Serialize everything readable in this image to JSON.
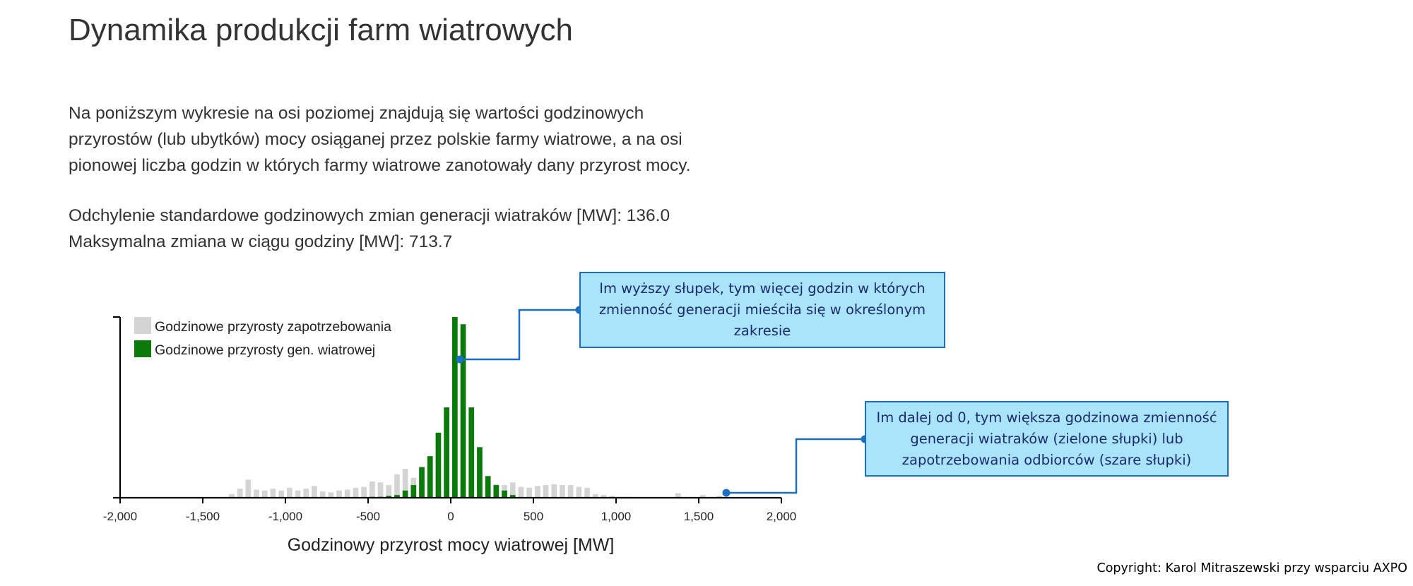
{
  "title": "Dynamika produkcji farm wiatrowych",
  "description": [
    "Na poniższym wykresie na osi poziomej znajdują się wartości godzinowych",
    "przyrostów (lub ubytków) mocy osiąganej przez polskie farmy wiatrowe, a na osi",
    "pionowej liczba godzin w których farmy wiatrowe zanotowały dany przyrost mocy."
  ],
  "stats": {
    "std_line": "Odchylenie standardowe godzinowych zmian generacji wiatraków [MW]: 136.0",
    "max_line": "Maksymalna zmiana w ciągu godziny [MW]: 713.7"
  },
  "callouts": [
    {
      "text": "Im wyższy słupek, tym więcej godzin w których zmienność generacji mieściła się w określonym zakresie"
    },
    {
      "text": "Im dalej od 0, tym większa godzinowa zmienność generacji wiatraków (zielone słupki) lub zapotrzebowania odbiorców (szare słupki)"
    }
  ],
  "copyright": "Copyright: Karol Mitraszewski przy wsparciu AXPO",
  "colors": {
    "demand": "#d4d4d4",
    "wind": "#0a7a0a",
    "callout_fill": "#a9e4fa",
    "callout_border": "#1a6fc0"
  },
  "chart_data": {
    "type": "bar",
    "xlabel": "Godzinowy przyrost mocy wiatrowej [MW]",
    "ylabel": "",
    "xlim": [
      -2000,
      2000
    ],
    "xticks": [
      -2000,
      -1500,
      -1000,
      -500,
      0,
      500,
      1000,
      1500,
      2000
    ],
    "xtick_labels": [
      "-2,000",
      "-1,500",
      "-1,000",
      "-500",
      "0",
      "500",
      "1,000",
      "1,500",
      "2,000"
    ],
    "ylim": [
      0,
      1.0
    ],
    "bin_width": 50,
    "legend_position": "top-left",
    "series": [
      {
        "name": "Godzinowe przyrosty zapotrzebowania",
        "color": "#d4d4d4",
        "x": [
          -1325,
          -1275,
          -1225,
          -1175,
          -1125,
          -1075,
          -1025,
          -975,
          -925,
          -875,
          -825,
          -775,
          -725,
          -675,
          -625,
          -575,
          -525,
          -475,
          -425,
          -375,
          -325,
          -275,
          -225,
          -175,
          -125,
          -75,
          -25,
          25,
          75,
          125,
          175,
          225,
          275,
          325,
          375,
          425,
          475,
          525,
          575,
          625,
          675,
          725,
          775,
          825,
          875,
          925,
          975,
          1025,
          1075,
          1125,
          1175,
          1225,
          1275,
          1325,
          1375,
          1425,
          1475,
          1525,
          1575,
          1625
        ],
        "values": [
          0.02,
          0.05,
          0.1,
          0.045,
          0.04,
          0.05,
          0.04,
          0.055,
          0.04,
          0.05,
          0.065,
          0.035,
          0.03,
          0.04,
          0.045,
          0.055,
          0.06,
          0.09,
          0.085,
          0.07,
          0.13,
          0.16,
          0.11,
          0.09,
          0.07,
          0.06,
          0.05,
          0.05,
          0.06,
          0.1,
          0.1,
          0.09,
          0.075,
          0.07,
          0.085,
          0.06,
          0.055,
          0.065,
          0.07,
          0.075,
          0.07,
          0.07,
          0.06,
          0.055,
          0.02,
          0.015,
          0.01,
          0.005,
          0.005,
          0.0,
          0.0,
          0.0,
          0.0,
          0.0,
          0.025,
          0.0,
          0.0,
          0.015,
          0.0,
          0.01
        ]
      },
      {
        "name": "Godzinowe przyrosty gen. wiatrowej",
        "color": "#0a7a0a",
        "x": [
          -475,
          -425,
          -375,
          -325,
          -275,
          -225,
          -175,
          -125,
          -75,
          -25,
          25,
          75,
          125,
          175,
          225,
          275,
          325,
          375
        ],
        "values": [
          0.005,
          0.005,
          0.01,
          0.015,
          0.04,
          0.07,
          0.17,
          0.23,
          0.36,
          0.5,
          1.0,
          0.96,
          0.5,
          0.28,
          0.12,
          0.07,
          0.04,
          0.015
        ]
      }
    ]
  }
}
